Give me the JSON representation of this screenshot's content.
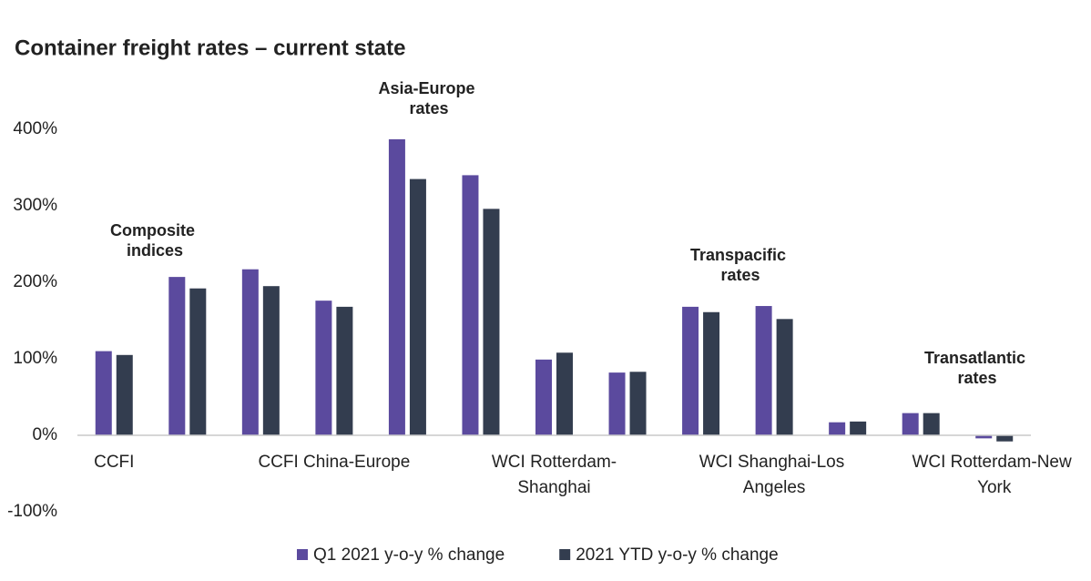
{
  "chart_data": {
    "type": "bar",
    "title": "Container freight rates – current state",
    "categories": [
      "CCFI",
      null,
      null,
      "CCFI China-Europe",
      null,
      null,
      "WCI Rotterdam-Shanghai",
      null,
      null,
      "WCI Shanghai-Los Angeles",
      null,
      null,
      "WCI Rotterdam-New York"
    ],
    "series": [
      {
        "name": "Q1 2021 y-o-y % change",
        "color": "#5b4a9e",
        "values": [
          110,
          207,
          217,
          176,
          387,
          340,
          99,
          82,
          168,
          169,
          17,
          29,
          -4
        ]
      },
      {
        "name": "2021 YTD y-o-y % change",
        "color": "#333d4f",
        "values": [
          105,
          192,
          195,
          168,
          335,
          296,
          108,
          83,
          161,
          152,
          18,
          29,
          -8
        ]
      }
    ],
    "ylim": [
      -100,
      400
    ],
    "yticks": [
      {
        "value": -100,
        "label": "-100%"
      },
      {
        "value": 0,
        "label": "0%"
      },
      {
        "value": 100,
        "label": "100%"
      },
      {
        "value": 200,
        "label": "200%"
      },
      {
        "value": 300,
        "label": "300%"
      },
      {
        "value": 400,
        "label": "400%"
      }
    ],
    "annotations": [
      "Composite indices",
      "Asia-Europe rates",
      "Transpacific rates",
      "Transatlantic rates"
    ],
    "legend": "bottom"
  }
}
